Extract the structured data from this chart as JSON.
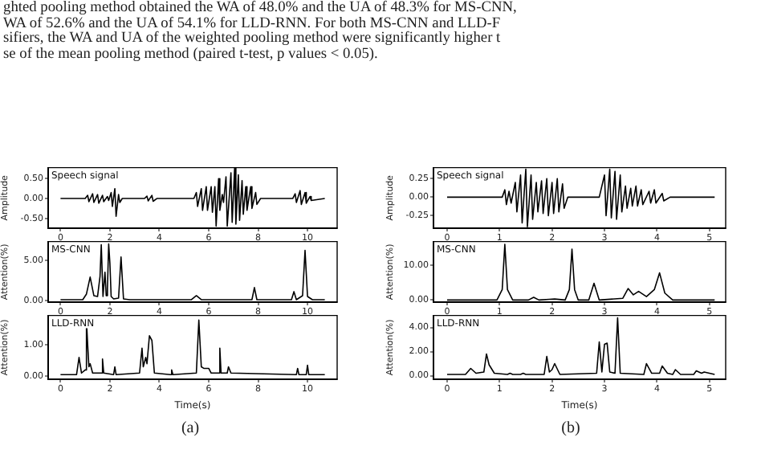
{
  "chart_data": [
    {
      "type": "line",
      "title": "Speech signal",
      "ylabel": "Amplitude",
      "annotations": [
        "ghted pooling method obtained the WA of 48.0% and the UA of 48.3% for MS-CNN,",
        "WA of 52.6% and the UA of 54.1% for LLD-RNN. For both MS-CNN and LLD-F",
        "sifiers, the WA and UA of the weighted pooling method were significantly higher t",
        "se of the mean pooling method (paired t-test, p values < 0.05)."
      ],
      "x": [
        0,
        1.0,
        1.1,
        1.15,
        1.3,
        1.35,
        1.5,
        1.55,
        1.7,
        1.75,
        1.9,
        1.95,
        2.05,
        2.1,
        2.2,
        2.25,
        2.35,
        2.4,
        2.5,
        3.4,
        3.5,
        3.55,
        3.7,
        3.75,
        3.9,
        5.4,
        5.5,
        5.55,
        5.7,
        5.75,
        5.9,
        5.95,
        6.1,
        6.15,
        6.25,
        6.3,
        6.4,
        6.45,
        6.55,
        6.6,
        6.7,
        6.75,
        6.9,
        6.95,
        7.05,
        7.1,
        7.2,
        7.25,
        7.35,
        7.4,
        7.5,
        7.55,
        7.7,
        7.75,
        7.9,
        7.95,
        8.1,
        9.4,
        9.5,
        9.55,
        9.7,
        9.75,
        9.9,
        9.95,
        10.1,
        10.15,
        10.7
      ],
      "series": [
        {
          "color": "#000000",
          "values": [
            0,
            0,
            0.08,
            -0.08,
            0.12,
            -0.1,
            0.1,
            -0.12,
            0.08,
            -0.08,
            0.05,
            -0.05,
            0.15,
            -0.2,
            0.25,
            -0.45,
            0.1,
            -0.1,
            0,
            0,
            0.06,
            -0.06,
            0.08,
            -0.07,
            0,
            0,
            0.15,
            -0.2,
            0.25,
            -0.3,
            0.3,
            -0.3,
            0.3,
            -0.35,
            0.3,
            -0.7,
            0.5,
            -0.3,
            0.1,
            -0.1,
            0.55,
            -0.7,
            0.65,
            -0.6,
            0.78,
            -0.65,
            0.6,
            -0.55,
            0.45,
            -0.4,
            0.3,
            -0.3,
            0.3,
            -0.25,
            0.15,
            -0.15,
            0,
            0,
            0.12,
            -0.1,
            0.2,
            -0.15,
            0.15,
            -0.12,
            0.05,
            -0.05,
            0
          ]
        }
      ],
      "xlim": [
        -0.5,
        11.2
      ],
      "xticks": [
        0,
        2,
        4,
        6,
        8,
        10
      ],
      "ylim": [
        -0.75,
        0.78
      ],
      "yticks": [
        {
          "value": -0.5,
          "label": "-0.50"
        },
        {
          "value": 0,
          "label": "0.00"
        },
        {
          "value": 0.5,
          "label": "0.50"
        }
      ]
    },
    {
      "type": "line",
      "title": "MS-CNN",
      "ylabel": "Attention(%)",
      "x": [
        0,
        0.9,
        1.05,
        1.2,
        1.35,
        1.5,
        1.6,
        1.65,
        1.72,
        1.8,
        1.85,
        1.9,
        1.95,
        2.0,
        2.05,
        2.15,
        2.35,
        2.45,
        2.55,
        2.8,
        5.3,
        5.5,
        5.7,
        7.75,
        7.85,
        7.95,
        9.35,
        9.45,
        9.55,
        9.8,
        9.9,
        10.0,
        10.2,
        10.7
      ],
      "series": [
        {
          "color": "#000000",
          "values": [
            0.1,
            0.1,
            0.8,
            2.9,
            0.6,
            0.5,
            3.0,
            6.9,
            0.5,
            3.5,
            0.6,
            1.5,
            7.0,
            4.6,
            0.5,
            0.2,
            0.3,
            5.4,
            0.2,
            0.1,
            0.1,
            0.6,
            0.1,
            0.1,
            1.6,
            0.1,
            0.1,
            1.1,
            0.1,
            0.6,
            6.2,
            0.5,
            0.1,
            0.1
          ]
        }
      ],
      "xlim": [
        -0.5,
        11.2
      ],
      "xticks": [
        0,
        2,
        4,
        6,
        8,
        10
      ],
      "ylim": [
        -0.2,
        7.3
      ],
      "yticks": [
        {
          "value": 0,
          "label": "0.00"
        },
        {
          "value": 5,
          "label": "5.00"
        }
      ]
    },
    {
      "type": "line",
      "title": "LLD-RNN",
      "ylabel": "Attention(%)",
      "xlabel": "Time(s)",
      "annotations": [
        "(a)"
      ],
      "x": [
        0,
        0.65,
        0.75,
        0.85,
        1.0,
        1.05,
        1.1,
        1.15,
        1.2,
        1.3,
        1.65,
        1.7,
        1.75,
        2.15,
        2.2,
        2.25,
        3.2,
        3.3,
        3.35,
        3.45,
        3.5,
        3.6,
        3.7,
        3.8,
        4.45,
        4.5,
        4.55,
        5.5,
        5.6,
        5.7,
        5.8,
        6.0,
        6.1,
        6.4,
        6.45,
        6.5,
        6.75,
        6.8,
        6.9,
        9.55,
        9.6,
        9.65,
        9.95,
        10.0,
        10.05,
        10.7
      ],
      "series": [
        {
          "color": "#000000",
          "values": [
            0.05,
            0.05,
            0.6,
            0.1,
            0.2,
            1.8,
            1.0,
            0.3,
            0.4,
            0.1,
            0.1,
            0.55,
            0.1,
            0.05,
            0.3,
            0.05,
            0.1,
            0.9,
            0.3,
            0.6,
            0.4,
            1.3,
            1.15,
            0.1,
            0.05,
            0.2,
            0.05,
            0.1,
            1.8,
            0.3,
            0.25,
            0.25,
            0.1,
            0.1,
            0.9,
            0.1,
            0.1,
            0.3,
            0.1,
            0.05,
            0.25,
            0.05,
            0.05,
            0.35,
            0.05,
            0.05
          ]
        }
      ],
      "xlim": [
        -0.5,
        11.2
      ],
      "xticks": [
        0,
        2,
        4,
        6,
        8,
        10
      ],
      "ylim": [
        -0.1,
        1.95
      ],
      "yticks": [
        {
          "value": 0,
          "label": "0.00"
        },
        {
          "value": 1,
          "label": "1.00"
        }
      ]
    },
    {
      "type": "line",
      "title": "Speech signal",
      "ylabel": "Amplitude",
      "x": [
        0,
        1.05,
        1.1,
        1.13,
        1.18,
        1.22,
        1.3,
        1.33,
        1.4,
        1.43,
        1.5,
        1.53,
        1.6,
        1.63,
        1.7,
        1.73,
        1.8,
        1.83,
        1.9,
        1.93,
        2.0,
        2.03,
        2.1,
        2.13,
        2.2,
        2.23,
        2.3,
        2.9,
        3.0,
        3.03,
        3.1,
        3.13,
        3.2,
        3.23,
        3.3,
        3.33,
        3.4,
        3.43,
        3.5,
        3.53,
        3.6,
        3.63,
        3.7,
        3.73,
        3.85,
        3.88,
        3.95,
        3.98,
        4.1,
        4.13,
        4.25,
        5.1
      ],
      "series": [
        {
          "color": "#000000",
          "values": [
            0,
            0,
            0.1,
            -0.1,
            0.08,
            -0.08,
            0.2,
            -0.2,
            0.3,
            -0.35,
            0.38,
            -0.4,
            0.3,
            -0.3,
            0.2,
            -0.2,
            0.22,
            -0.22,
            0.25,
            -0.25,
            0.2,
            -0.22,
            0.25,
            -0.2,
            0.18,
            -0.15,
            0,
            0,
            0.3,
            -0.25,
            0.38,
            -0.28,
            0.35,
            -0.3,
            0.3,
            -0.2,
            0.15,
            -0.15,
            0.12,
            -0.12,
            0.15,
            -0.12,
            0.1,
            -0.1,
            0.08,
            -0.08,
            0.1,
            -0.08,
            0.05,
            -0.05,
            0,
            0
          ]
        }
      ],
      "xlim": [
        -0.26,
        5.31
      ],
      "xticks": [
        0,
        1,
        2,
        3,
        4,
        5
      ],
      "ylim": [
        -0.42,
        0.4
      ],
      "yticks": [
        {
          "value": -0.25,
          "label": "-0.25"
        },
        {
          "value": 0,
          "label": "0.00"
        },
        {
          "value": 0.25,
          "label": "0.25"
        }
      ]
    },
    {
      "type": "line",
      "title": "MS-CNN",
      "ylabel": "Attention(%)",
      "x": [
        0,
        0.95,
        1.05,
        1.1,
        1.15,
        1.25,
        1.55,
        1.65,
        1.75,
        1.95,
        2.05,
        2.25,
        2.33,
        2.38,
        2.43,
        2.5,
        2.7,
        2.8,
        2.9,
        3.35,
        3.45,
        3.55,
        3.65,
        3.8,
        3.95,
        4.05,
        4.15,
        4.3,
        5.1
      ],
      "series": [
        {
          "color": "#000000",
          "values": [
            0,
            0,
            3,
            16,
            3,
            0,
            0,
            0.8,
            0,
            0.2,
            0.3,
            0,
            3,
            14.6,
            3,
            0,
            0,
            4.8,
            0,
            0.5,
            3.3,
            1.5,
            2.5,
            1.0,
            3,
            7.8,
            2,
            0,
            0
          ]
        }
      ],
      "xlim": [
        -0.26,
        5.31
      ],
      "xticks": [
        0,
        1,
        2,
        3,
        4,
        5
      ],
      "ylim": [
        -0.6,
        16.8
      ],
      "yticks": [
        {
          "value": 0,
          "label": "0.00"
        },
        {
          "value": 10,
          "label": "10.00"
        }
      ]
    },
    {
      "type": "line",
      "title": "LLD-RNN",
      "ylabel": "Attention(%)",
      "xlabel": "Time(s)",
      "annotations": [
        "(b)"
      ],
      "x": [
        0,
        0.35,
        0.45,
        0.55,
        0.7,
        0.75,
        0.8,
        0.9,
        1.15,
        1.2,
        1.25,
        1.4,
        1.45,
        1.5,
        1.85,
        1.9,
        1.95,
        2.0,
        2.05,
        2.15,
        2.85,
        2.9,
        2.95,
        3.0,
        3.05,
        3.1,
        3.2,
        3.25,
        3.3,
        3.75,
        3.8,
        3.9,
        4.05,
        4.1,
        4.2,
        4.3,
        4.35,
        4.45,
        4.7,
        4.75,
        4.85,
        4.9,
        5.1
      ],
      "series": [
        {
          "color": "#000000",
          "values": [
            0.1,
            0.1,
            0.6,
            0.2,
            0.3,
            1.8,
            0.9,
            0.2,
            0.1,
            0.2,
            0.1,
            0.1,
            0.2,
            0.1,
            0.1,
            1.6,
            0.3,
            0.5,
            1.0,
            0.1,
            0.2,
            2.8,
            0.3,
            2.6,
            2.7,
            0.3,
            0.2,
            4.8,
            0.2,
            0.1,
            1.0,
            0.2,
            0.2,
            0.8,
            0.2,
            0.1,
            0.5,
            0.1,
            0.1,
            0.4,
            0.2,
            0.3,
            0.1
          ]
        }
      ],
      "xlim": [
        -0.26,
        5.31
      ],
      "xticks": [
        0,
        1,
        2,
        3,
        4,
        5
      ],
      "ylim": [
        -0.3,
        5.0
      ],
      "yticks": [
        {
          "value": 0,
          "label": "0.00"
        },
        {
          "value": 2,
          "label": "2.00"
        },
        {
          "value": 4,
          "label": "4.00"
        }
      ]
    }
  ]
}
